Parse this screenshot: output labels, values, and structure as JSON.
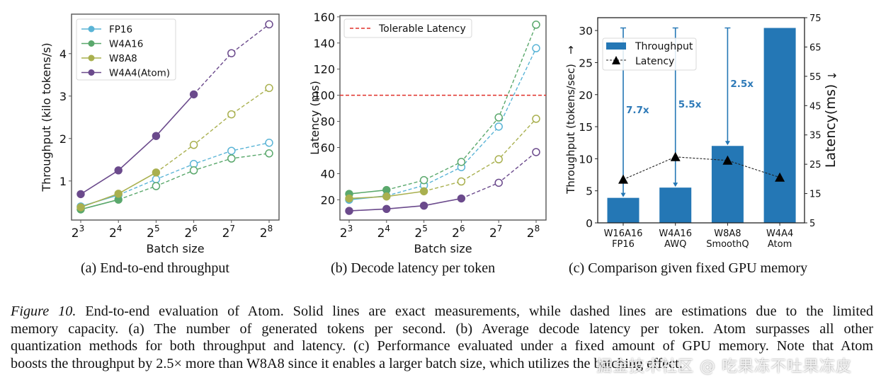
{
  "chart_data": [
    {
      "id": "a",
      "type": "line",
      "title": "",
      "xlabel": "Batch size",
      "ylabel": "Throughput (kilo tokens/s)",
      "x": [
        8,
        16,
        32,
        64,
        128,
        256
      ],
      "x_tick_base": "2",
      "x_tick_exponents": [
        "3",
        "4",
        "5",
        "6",
        "7",
        "8"
      ],
      "y_ticks": [
        1,
        2,
        3,
        4
      ],
      "ylim": [
        0.08,
        4.93
      ],
      "xscale": "log2",
      "legend_position": "top-left",
      "series": [
        {
          "name": "FP16",
          "color": "#5ab4d6",
          "values": [
            0.4,
            0.67,
            1.04,
            1.4,
            1.71,
            1.9
          ],
          "measured_points": 2
        },
        {
          "name": "W4A16",
          "color": "#5aa86c",
          "values": [
            0.33,
            0.56,
            0.88,
            1.25,
            1.53,
            1.65
          ],
          "measured_points": 2
        },
        {
          "name": "W8A8",
          "color": "#a9b04f",
          "values": [
            0.38,
            0.7,
            1.2,
            1.85,
            2.57,
            3.19
          ],
          "measured_points": 3
        },
        {
          "name": "W4A4(Atom)",
          "color": "#6b4a8c",
          "values": [
            0.69,
            1.25,
            2.06,
            3.04,
            4.01,
            4.69
          ],
          "measured_points": 4
        }
      ]
    },
    {
      "id": "b",
      "type": "line",
      "title": "",
      "xlabel": "Batch size",
      "ylabel": "Latency (ms)",
      "x": [
        8,
        16,
        32,
        64,
        128,
        256
      ],
      "x_tick_base": "2",
      "x_tick_exponents": [
        "3",
        "4",
        "5",
        "6",
        "7",
        "8"
      ],
      "y_ticks": [
        20,
        40,
        60,
        80,
        100,
        120,
        140,
        160
      ],
      "ylim": [
        4.5,
        161
      ],
      "xscale": "log2",
      "legend_position": "top-left",
      "reference_line": {
        "label": "Tolerable Latency",
        "value": 100,
        "color": "#e0302a"
      },
      "series": [
        {
          "name": "FP16",
          "color": "#5ab4d6",
          "values": [
            20,
            23,
            31,
            45,
            76,
            136
          ],
          "measured_points": 2
        },
        {
          "name": "W4A16",
          "color": "#5aa86c",
          "values": [
            24.5,
            27.5,
            35,
            49,
            83,
            154
          ],
          "measured_points": 2
        },
        {
          "name": "W8A8",
          "color": "#a9b04f",
          "values": [
            21,
            22.5,
            26.5,
            34,
            51,
            82
          ],
          "measured_points": 3
        },
        {
          "name": "W4A4(Atom)",
          "color": "#6b4a8c",
          "values": [
            11.5,
            13,
            15.5,
            21,
            33,
            56.5
          ],
          "measured_points": 4
        }
      ]
    },
    {
      "id": "c",
      "type": "bar",
      "title": "",
      "categories": [
        [
          "W16A16",
          "FP16"
        ],
        [
          "W4A16",
          "AWQ"
        ],
        [
          "W8A8",
          "SmoothQ"
        ],
        [
          "W4A4",
          "Atom"
        ]
      ],
      "ylabel": "Throughput (tokens/sec)",
      "ylabel_arrow": "↑",
      "y2label": "Latency(ms)",
      "y2label_arrow": "→",
      "y_ticks": [
        0,
        5,
        10,
        15,
        20,
        25,
        30
      ],
      "ylim": [
        0,
        32
      ],
      "y2_ticks": [
        5,
        15,
        25,
        35,
        45,
        55,
        65,
        75
      ],
      "y2lim": [
        5,
        75
      ],
      "legend_position": "top-left",
      "bar_color": "#2477b5",
      "series": [
        {
          "name": "Throughput",
          "type": "bar",
          "axis": "left",
          "values": [
            3.9,
            5.5,
            12.0,
            30.4
          ]
        },
        {
          "name": "Latency",
          "type": "line",
          "axis": "right",
          "marker": "triangle",
          "values": [
            19.8,
            27.5,
            26.3,
            20.5
          ]
        }
      ],
      "annotations": [
        {
          "label": "7.7x",
          "category_index": 0,
          "from": 30.4,
          "to": 3.9
        },
        {
          "label": "5.5x",
          "category_index": 1,
          "from": 30.4,
          "to": 5.5
        },
        {
          "label": "2.5x",
          "category_index": 2,
          "from": 30.4,
          "to": 12.0
        }
      ]
    }
  ],
  "subcaptions": {
    "a": "(a)  End-to-end throughput",
    "b": "(b)  Decode latency per token",
    "c": "(c)  Comparison given fixed GPU memory"
  },
  "caption": {
    "label": "Figure 10.",
    "lines": [
      " End-to-end evaluation of Atom.  Solid lines are exact measurements, while dashed lines are estimations due to the limited",
      "memory capacity.  (a) The number of generated tokens per second.  (b) Average decode latency per token.  Atom surpasses all other",
      "quantization methods for both throughput and latency. (c) Performance evaluated under a fixed amount of GPU memory. Note that Atom",
      "boosts the throughput by 2.5× more than W8A8 since it enables a larger batch size, which utilizes the batching effect."
    ]
  },
  "watermark": "掘金技术社区 @ 吃果冻不吐果冻皮"
}
